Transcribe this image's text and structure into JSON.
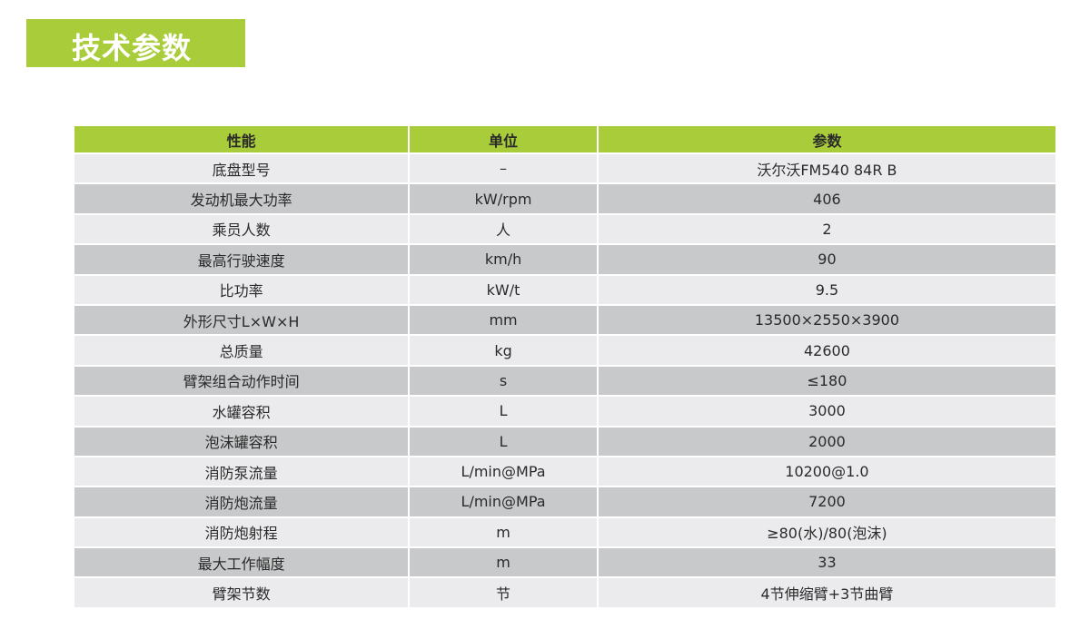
{
  "title": "技术参数",
  "colors": {
    "accent": "#a8cc3a",
    "row_light": "#ebebed",
    "row_dark": "#c8c9cb"
  },
  "table": {
    "headers": [
      "性能",
      "单位",
      "参数"
    ],
    "rows": [
      [
        "底盘型号",
        "–",
        "沃尔沃FM540 84R B"
      ],
      [
        "发动机最大功率",
        "kW/rpm",
        "406"
      ],
      [
        "乘员人数",
        "人",
        "2"
      ],
      [
        "最高行驶速度",
        "km/h",
        "90"
      ],
      [
        "比功率",
        "kW/t",
        "9.5"
      ],
      [
        "外形尺寸L×W×H",
        "mm",
        "13500×2550×3900"
      ],
      [
        "总质量",
        "kg",
        "42600"
      ],
      [
        "臂架组合动作时间",
        "s",
        "≤180"
      ],
      [
        "水罐容积",
        "L",
        "3000"
      ],
      [
        "泡沫罐容积",
        "L",
        "2000"
      ],
      [
        "消防泵流量",
        "L/min@MPa",
        "10200@1.0"
      ],
      [
        "消防炮流量",
        "L/min@MPa",
        "7200"
      ],
      [
        "消防炮射程",
        "m",
        "≥80(水)/80(泡沫)"
      ],
      [
        "最大工作幅度",
        "m",
        "33"
      ],
      [
        "臂架节数",
        "节",
        "4节伸缩臂+3节曲臂"
      ]
    ]
  }
}
